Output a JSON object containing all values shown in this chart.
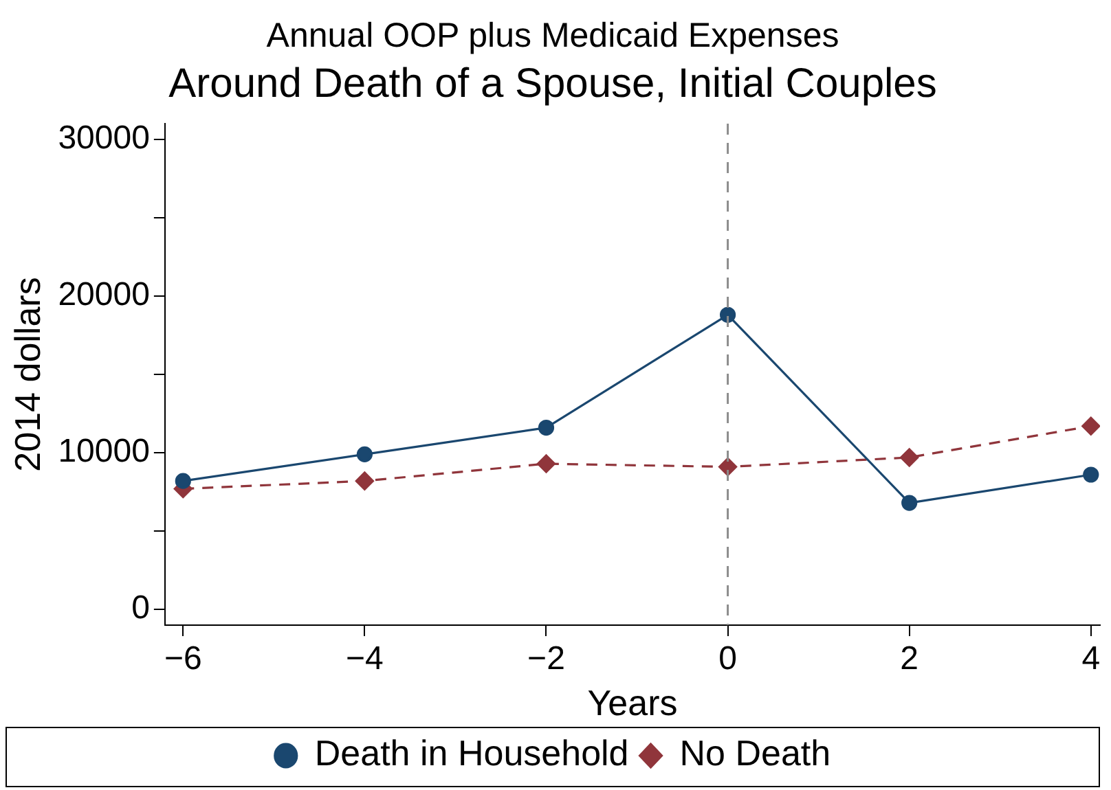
{
  "chart_data": {
    "type": "line",
    "title": "Annual OOP plus Medicaid Expenses",
    "subtitle": "Around Death of a Spouse, Initial Couples",
    "xlabel": "Years",
    "ylabel": "2014 dollars",
    "x": [
      -6,
      -4,
      -2,
      0,
      2,
      4
    ],
    "series": [
      {
        "name": "Death in Household",
        "color": "#1a476f",
        "values": [
          8200,
          9900,
          11600,
          18800,
          6800,
          8600
        ],
        "marker": "circle",
        "line_style": "solid"
      },
      {
        "name": "No Death",
        "color": "#90353b",
        "values": [
          7700,
          8200,
          9300,
          9100,
          9700,
          11700
        ],
        "marker": "diamond",
        "line_style": "dashed"
      }
    ],
    "xlim": [
      -6.2,
      4.1
    ],
    "xticks": [
      -6,
      -4,
      -2,
      0,
      2,
      4
    ],
    "ylim": [
      -1000,
      31000
    ],
    "yticks": [
      0,
      {
        "value": 5000,
        "label": null
      },
      10000,
      {
        "value": 15000,
        "label": null
      },
      20000,
      {
        "value": 25000,
        "label": null
      },
      30000
    ],
    "ref_lines": [
      {
        "axis": "x",
        "value": 0,
        "color": "#8c8c8c",
        "line_style": "dashed"
      }
    ],
    "grid": false,
    "legend": "bottom"
  }
}
